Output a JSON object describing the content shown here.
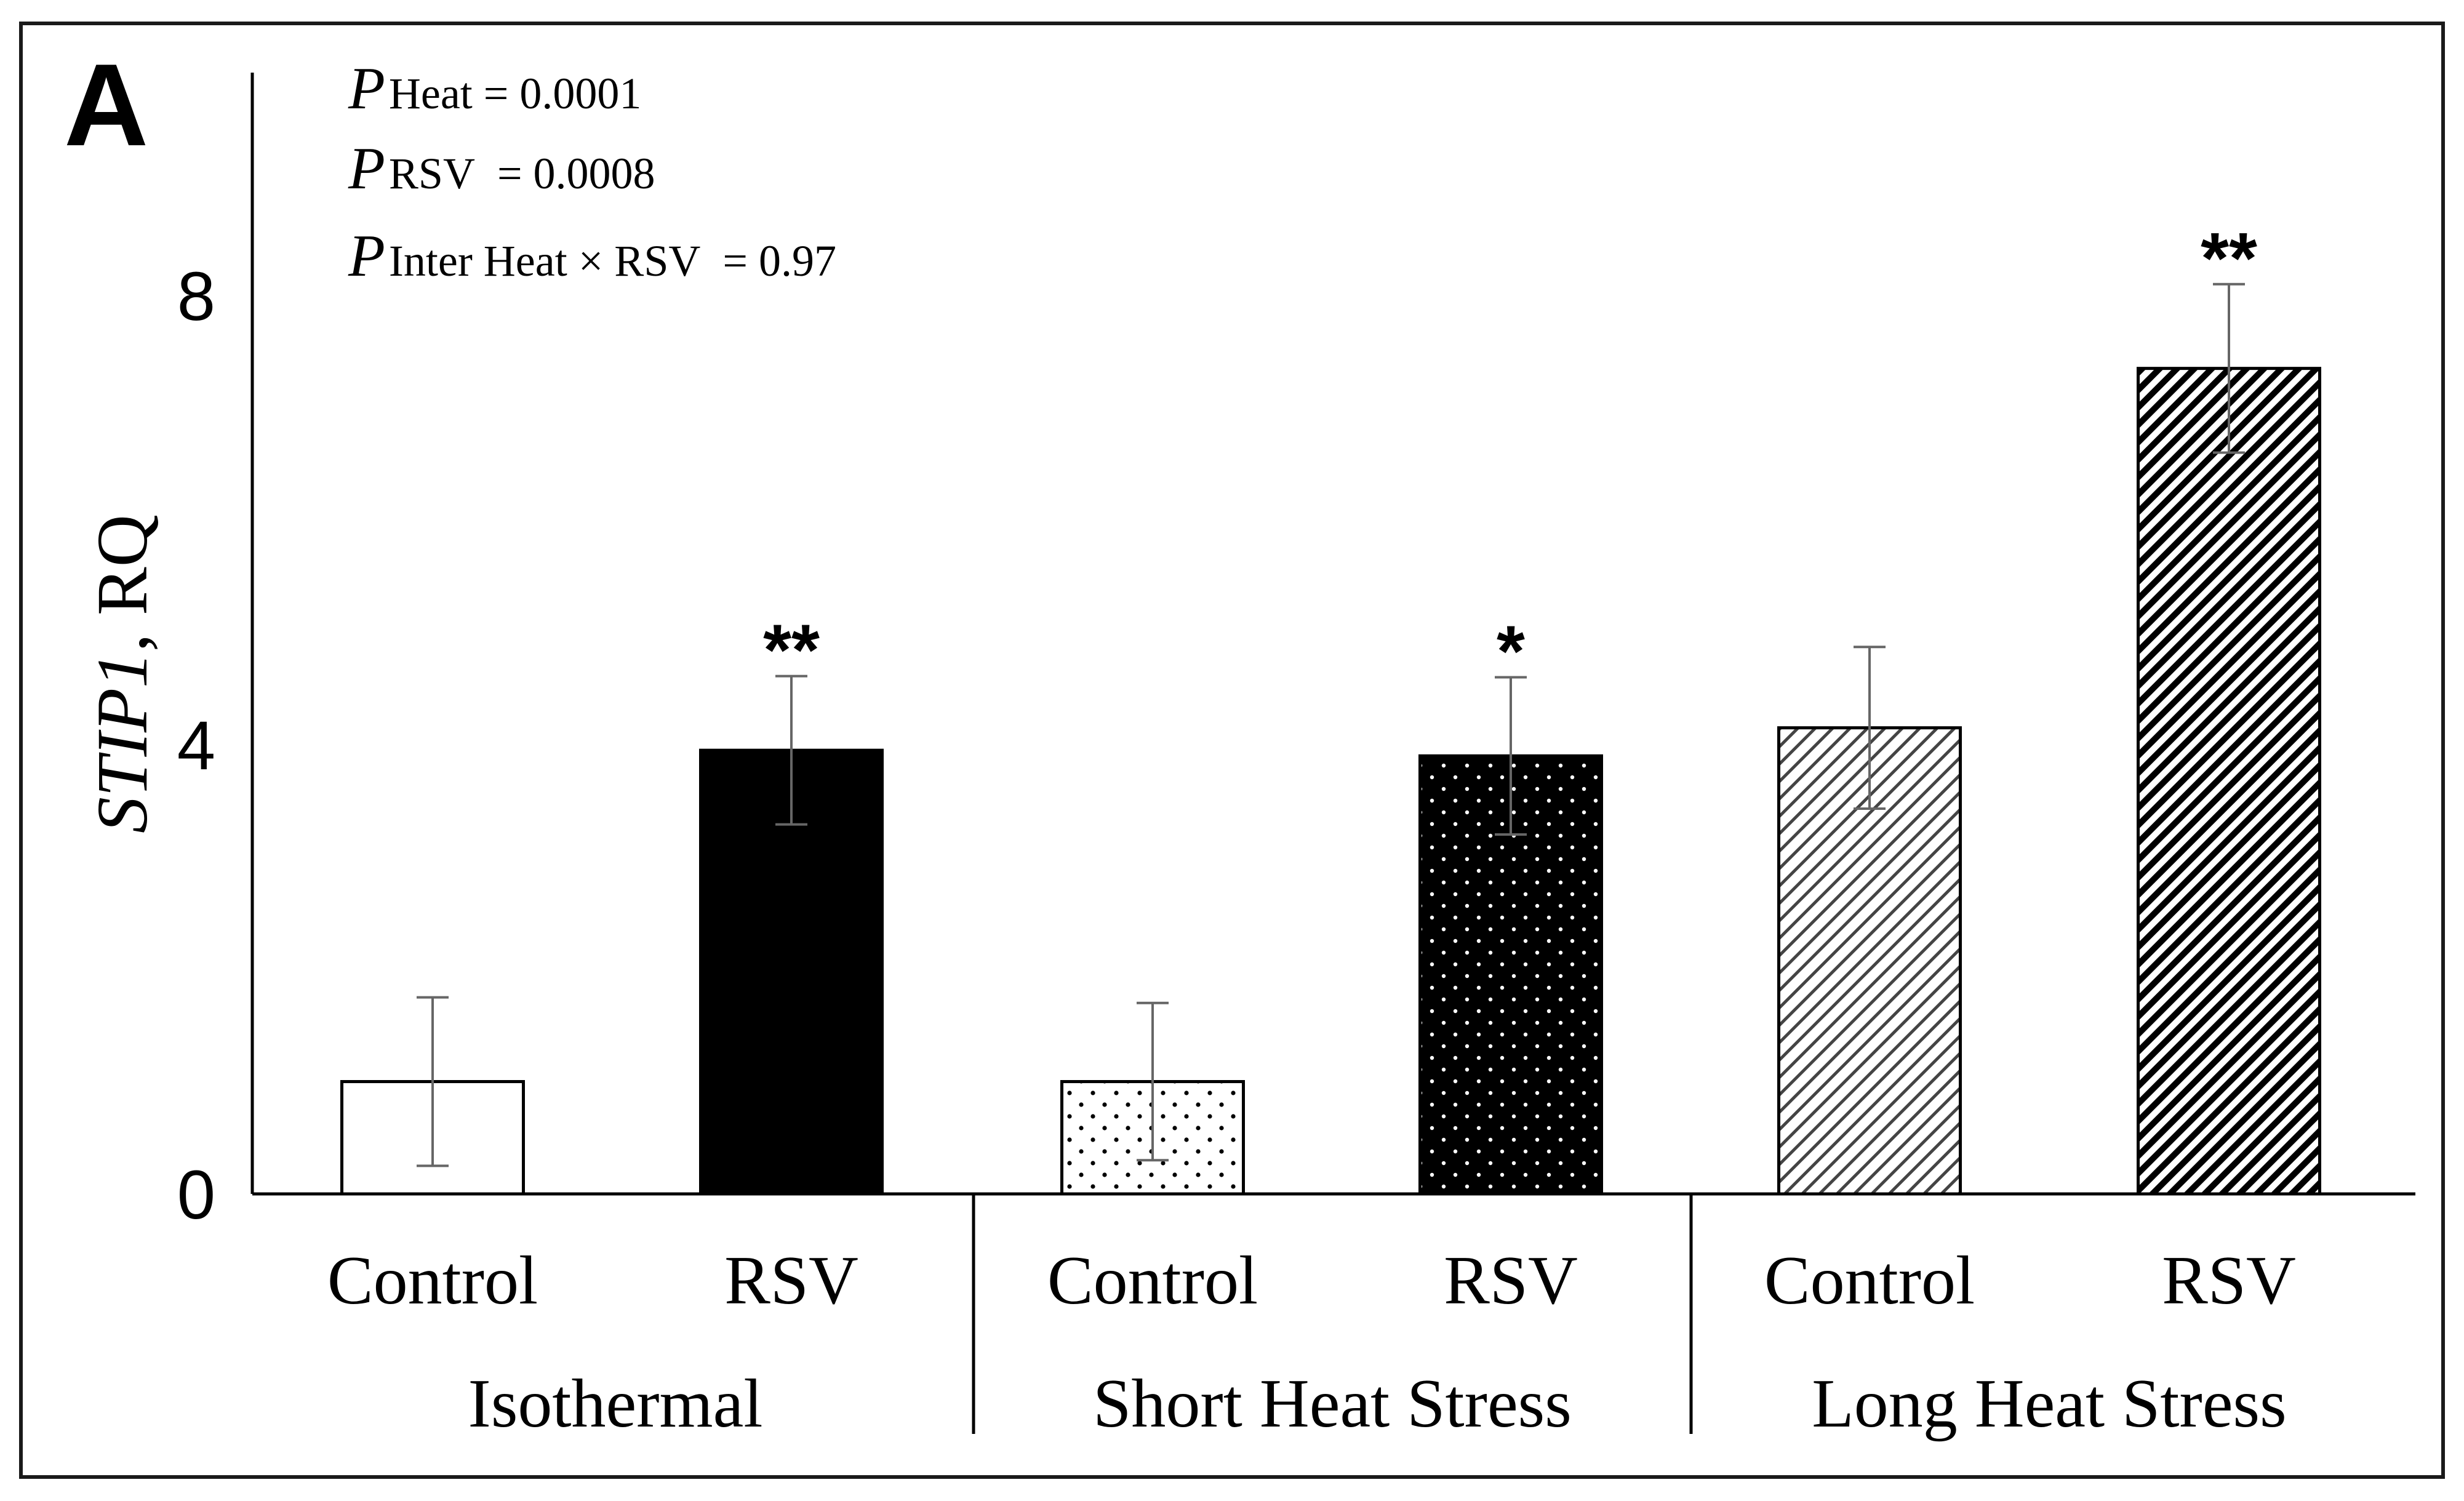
{
  "panel_label": "A",
  "stats": {
    "heat": {
      "p": "P",
      "sub": "Heat",
      "value": "= 0.0001"
    },
    "rsv": {
      "p": "P",
      "sub": "RSV",
      "value": "= 0.0008"
    },
    "inter": {
      "p": "P",
      "sub": "Inter Heat × RSV",
      "value": "= 0.97"
    }
  },
  "chart_data": {
    "type": "bar",
    "ylabel_italic": "STIP1",
    "ylabel_rest": ", RQ",
    "ylim": [
      0,
      10
    ],
    "yticks": [
      0,
      4,
      8
    ],
    "groups": [
      "Isothermal",
      "Short Heat Stress",
      "Long Heat Stress"
    ],
    "categories": [
      "Control",
      "RSV",
      "Control",
      "RSV",
      "Control",
      "RSV"
    ],
    "values": [
      1.0,
      3.95,
      1.0,
      3.9,
      4.15,
      7.35
    ],
    "error": [
      0.75,
      0.66,
      0.7,
      0.7,
      0.72,
      0.75
    ],
    "significance": [
      "",
      "**",
      "",
      "*",
      "",
      "**"
    ],
    "fills": [
      "white",
      "black",
      "dots-sparse",
      "dots-dense",
      "hatch-sparse",
      "hatch-dense"
    ],
    "grid": false
  }
}
